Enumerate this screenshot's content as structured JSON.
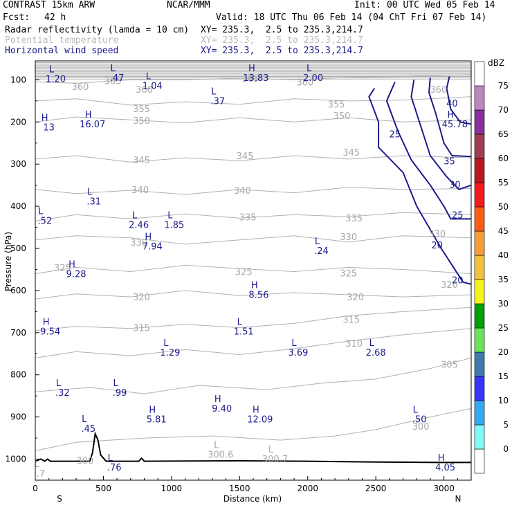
{
  "header": {
    "model": "CONTRAST 15km ARW",
    "org": "NCAR/MMM",
    "init": "Init: 00 UTC Wed 05 Feb 14",
    "fcst_label": "Fcst:",
    "fcst_value": "42 h",
    "valid": "Valid: 18 UTC Thu 06 Feb 14 (04 ChT Fri 07 Feb 14)"
  },
  "legend": [
    {
      "name": "Radar reflectivity (lamda = 10 cm)",
      "xy": "XY= 235.3,  2.5 to 235.3,214.7",
      "color": "#000000"
    },
    {
      "name": "Potential temperature",
      "xy": "XY= 235.3,  2.5 to 235.3,214.7",
      "color": "#bdbdbd"
    },
    {
      "name": "Horizontal wind speed",
      "xy": "XY= 235.3,  2.5 to 235.3,214.7",
      "color": "#1a1a8c"
    }
  ],
  "chart_data": {
    "type": "cross-section contour",
    "xlabel": "Distance (km)",
    "ylabel": "Pressure (hPa)",
    "xlim": [
      0,
      3200
    ],
    "ylim": [
      1050,
      55
    ],
    "x_ticks": [
      0,
      500,
      1000,
      1500,
      2000,
      2500,
      3000
    ],
    "y_ticks": [
      100,
      200,
      300,
      400,
      500,
      600,
      700,
      800,
      900,
      1000
    ],
    "x_end_labels": {
      "left": "S",
      "right": "N"
    },
    "theta_levels": [
      300,
      305,
      310,
      315,
      320,
      325,
      330,
      335,
      340,
      345,
      350,
      355,
      360,
      365
    ],
    "theta_contours": [
      {
        "label": "360",
        "points": [
          [
            0,
            105
          ],
          [
            300,
            108
          ],
          [
            700,
            100
          ],
          [
            1100,
            100
          ],
          [
            1500,
            96
          ],
          [
            1900,
            100
          ],
          [
            2300,
            94
          ],
          [
            2700,
            92
          ],
          [
            3200,
            88
          ]
        ]
      },
      {
        "label": "355",
        "points": [
          [
            0,
            150
          ],
          [
            300,
            145
          ],
          [
            700,
            160
          ],
          [
            1100,
            152
          ],
          [
            1500,
            158
          ],
          [
            1900,
            145
          ],
          [
            2300,
            150
          ],
          [
            2700,
            148
          ],
          [
            3200,
            140
          ]
        ]
      },
      {
        "label": "350",
        "points": [
          [
            0,
            200
          ],
          [
            300,
            188
          ],
          [
            700,
            195
          ],
          [
            1100,
            202
          ],
          [
            1500,
            190
          ],
          [
            1900,
            200
          ],
          [
            2300,
            190
          ],
          [
            2700,
            200
          ],
          [
            3200,
            195
          ]
        ]
      },
      {
        "label": "345",
        "points": [
          [
            0,
            288
          ],
          [
            300,
            280
          ],
          [
            700,
            295
          ],
          [
            1100,
            285
          ],
          [
            1500,
            292
          ],
          [
            1900,
            280
          ],
          [
            2300,
            288
          ],
          [
            2700,
            280
          ],
          [
            3200,
            285
          ]
        ]
      },
      {
        "label": "340",
        "points": [
          [
            0,
            360
          ],
          [
            300,
            370
          ],
          [
            700,
            362
          ],
          [
            1100,
            372
          ],
          [
            1500,
            360
          ],
          [
            1900,
            368
          ],
          [
            2300,
            355
          ],
          [
            2700,
            360
          ],
          [
            3200,
            358
          ]
        ]
      },
      {
        "label": "335",
        "points": [
          [
            0,
            435
          ],
          [
            300,
            420
          ],
          [
            700,
            430
          ],
          [
            1100,
            418
          ],
          [
            1500,
            428
          ],
          [
            1900,
            420
          ],
          [
            2300,
            425
          ],
          [
            2700,
            415
          ],
          [
            3200,
            420
          ]
        ]
      },
      {
        "label": "330",
        "points": [
          [
            0,
            480
          ],
          [
            300,
            470
          ],
          [
            700,
            475
          ],
          [
            1100,
            490
          ],
          [
            1500,
            480
          ],
          [
            1900,
            470
          ],
          [
            2300,
            485
          ],
          [
            2700,
            470
          ],
          [
            3200,
            475
          ]
        ]
      },
      {
        "label": "325",
        "points": [
          [
            0,
            560
          ],
          [
            300,
            545
          ],
          [
            700,
            555
          ],
          [
            1100,
            540
          ],
          [
            1500,
            548
          ],
          [
            1900,
            555
          ],
          [
            2300,
            545
          ],
          [
            2700,
            550
          ],
          [
            3200,
            560
          ]
        ]
      },
      {
        "label": "320",
        "points": [
          [
            0,
            620
          ],
          [
            300,
            608
          ],
          [
            700,
            615
          ],
          [
            1100,
            600
          ],
          [
            1500,
            612
          ],
          [
            1900,
            605
          ],
          [
            2300,
            610
          ],
          [
            2700,
            615
          ],
          [
            3200,
            610
          ]
        ]
      },
      {
        "label": "315",
        "points": [
          [
            0,
            695
          ],
          [
            300,
            685
          ],
          [
            700,
            690
          ],
          [
            1100,
            680
          ],
          [
            1500,
            688
          ],
          [
            1900,
            678
          ],
          [
            2300,
            660
          ],
          [
            2700,
            650
          ],
          [
            3200,
            640
          ]
        ]
      },
      {
        "label": "310",
        "points": [
          [
            0,
            760
          ],
          [
            300,
            745
          ],
          [
            700,
            755
          ],
          [
            1100,
            740
          ],
          [
            1500,
            752
          ],
          [
            1900,
            738
          ],
          [
            2300,
            720
          ],
          [
            2700,
            705
          ],
          [
            3200,
            690
          ]
        ]
      },
      {
        "label": "305",
        "points": [
          [
            0,
            840
          ],
          [
            400,
            830
          ],
          [
            800,
            845
          ],
          [
            1200,
            825
          ],
          [
            1700,
            835
          ],
          [
            2100,
            820
          ],
          [
            2500,
            810
          ],
          [
            2900,
            785
          ],
          [
            3200,
            760
          ]
        ]
      },
      {
        "label": "300",
        "points": [
          [
            0,
            980
          ],
          [
            300,
            960
          ],
          [
            800,
            950
          ],
          [
            1300,
            945
          ],
          [
            1800,
            955
          ],
          [
            2200,
            945
          ],
          [
            2500,
            930
          ],
          [
            2900,
            900
          ],
          [
            3200,
            880
          ]
        ]
      }
    ],
    "theta_labels": [
      {
        "text": "360",
        "x": 330,
        "y": 116
      },
      {
        "text": "365",
        "x": 570,
        "y": 102
      },
      {
        "text": "360",
        "x": 800,
        "y": 122
      },
      {
        "text": "365",
        "x": 1580,
        "y": 96
      },
      {
        "text": "360",
        "x": 1980,
        "y": 105
      },
      {
        "text": "360",
        "x": 2960,
        "y": 122
      },
      {
        "text": "355",
        "x": 780,
        "y": 168
      },
      {
        "text": "355",
        "x": 2210,
        "y": 158
      },
      {
        "text": "350",
        "x": 780,
        "y": 196
      },
      {
        "text": "350",
        "x": 2250,
        "y": 185
      },
      {
        "text": "345",
        "x": 780,
        "y": 290
      },
      {
        "text": "345",
        "x": 1540,
        "y": 280
      },
      {
        "text": "345",
        "x": 2320,
        "y": 272
      },
      {
        "text": "340",
        "x": 770,
        "y": 360
      },
      {
        "text": "340",
        "x": 1520,
        "y": 362
      },
      {
        "text": "335",
        "x": 1560,
        "y": 425
      },
      {
        "text": "335",
        "x": 2340,
        "y": 428
      },
      {
        "text": "330",
        "x": 760,
        "y": 485
      },
      {
        "text": "330",
        "x": 2300,
        "y": 472
      },
      {
        "text": "330",
        "x": 2950,
        "y": 465
      },
      {
        "text": "325",
        "x": 200,
        "y": 545
      },
      {
        "text": "325",
        "x": 1530,
        "y": 555
      },
      {
        "text": "325",
        "x": 2300,
        "y": 558
      },
      {
        "text": "320",
        "x": 780,
        "y": 615
      },
      {
        "text": "320",
        "x": 2350,
        "y": 615
      },
      {
        "text": "320",
        "x": 3040,
        "y": 585
      },
      {
        "text": "315",
        "x": 780,
        "y": 688
      },
      {
        "text": "315",
        "x": 2320,
        "y": 668
      },
      {
        "text": "310",
        "x": 2340,
        "y": 725
      },
      {
        "text": "305",
        "x": 3040,
        "y": 775
      },
      {
        "text": "300",
        "x": 2830,
        "y": 922
      },
      {
        "text": "300",
        "x": 365,
        "y": 1003
      }
    ],
    "wind_contours": [
      {
        "label": "20",
        "points": [
          [
            2490,
            120
          ],
          [
            2450,
            140
          ],
          [
            2520,
            200
          ],
          [
            2520,
            260
          ],
          [
            2700,
            320
          ],
          [
            2800,
            400
          ],
          [
            2980,
            500
          ],
          [
            3140,
            580
          ],
          [
            3200,
            585
          ]
        ]
      },
      {
        "label": "25",
        "points": [
          [
            2640,
            105
          ],
          [
            2580,
            150
          ],
          [
            2660,
            220
          ],
          [
            2760,
            290
          ],
          [
            2900,
            350
          ],
          [
            3000,
            400
          ],
          [
            3050,
            430
          ],
          [
            3200,
            430
          ]
        ]
      },
      {
        "label": "30",
        "points": [
          [
            2780,
            100
          ],
          [
            2760,
            140
          ],
          [
            2810,
            190
          ],
          [
            2900,
            280
          ],
          [
            3020,
            330
          ],
          [
            3110,
            360
          ],
          [
            3200,
            350
          ]
        ]
      },
      {
        "label": "35",
        "points": [
          [
            2900,
            95
          ],
          [
            2890,
            130
          ],
          [
            2940,
            180
          ],
          [
            3000,
            250
          ],
          [
            3060,
            280
          ],
          [
            3200,
            282
          ]
        ]
      },
      {
        "label": "40",
        "points": [
          [
            3040,
            92
          ],
          [
            3020,
            120
          ],
          [
            3050,
            170
          ],
          [
            3120,
            200
          ],
          [
            3200,
            205
          ]
        ]
      }
    ],
    "wind_labels": [
      {
        "text": "25",
        "x": 2640,
        "y": 228
      },
      {
        "text": "40",
        "x": 3060,
        "y": 155
      },
      {
        "text": "35",
        "x": 3040,
        "y": 292
      },
      {
        "text": "30",
        "x": 3080,
        "y": 348
      },
      {
        "text": "25",
        "x": 3100,
        "y": 420
      },
      {
        "text": "20",
        "x": 2950,
        "y": 492
      },
      {
        "text": "20",
        "x": 3100,
        "y": 575
      }
    ],
    "wind_extrema": [
      {
        "kind": "L",
        "value": "1.20",
        "x": 150,
        "y": 85
      },
      {
        "kind": "L",
        "value": ".47",
        "x": 600,
        "y": 83
      },
      {
        "kind": "L",
        "value": "1.04",
        "x": 860,
        "y": 102
      },
      {
        "kind": "H",
        "value": "13.83",
        "x": 1620,
        "y": 83
      },
      {
        "kind": "L",
        "value": "2.00",
        "x": 2040,
        "y": 83
      },
      {
        "kind": "L",
        "value": ".37",
        "x": 1340,
        "y": 138
      },
      {
        "kind": "H",
        "value": "13",
        "x": 100,
        "y": 200
      },
      {
        "kind": "H",
        "value": "16.07",
        "x": 420,
        "y": 193
      },
      {
        "kind": "H",
        "value": "45.78",
        "x": 3080,
        "y": 193
      },
      {
        "kind": "L",
        "value": ".31",
        "x": 430,
        "y": 376
      },
      {
        "kind": "L",
        "value": ".52",
        "x": 70,
        "y": 422
      },
      {
        "kind": "L",
        "value": "2.46",
        "x": 760,
        "y": 432
      },
      {
        "kind": "L",
        "value": "1.85",
        "x": 1020,
        "y": 432
      },
      {
        "kind": "H",
        "value": "7.94",
        "x": 860,
        "y": 483
      },
      {
        "kind": "L",
        "value": ".24",
        "x": 2100,
        "y": 493
      },
      {
        "kind": "H",
        "value": "9.28",
        "x": 300,
        "y": 548
      },
      {
        "kind": "H",
        "value": "8.56",
        "x": 1640,
        "y": 598
      },
      {
        "kind": "H",
        "value": "9.54",
        "x": 110,
        "y": 685
      },
      {
        "kind": "L",
        "value": "1.51",
        "x": 1530,
        "y": 685
      },
      {
        "kind": "L",
        "value": "1.29",
        "x": 990,
        "y": 735
      },
      {
        "kind": "L",
        "value": "3.69",
        "x": 1930,
        "y": 735
      },
      {
        "kind": "L",
        "value": "2.68",
        "x": 2500,
        "y": 735
      },
      {
        "kind": "L",
        "value": ".32",
        "x": 200,
        "y": 830
      },
      {
        "kind": "L",
        "value": ".99",
        "x": 620,
        "y": 830
      },
      {
        "kind": "H",
        "value": "9.40",
        "x": 1370,
        "y": 868
      },
      {
        "kind": "H",
        "value": "5.81",
        "x": 890,
        "y": 893
      },
      {
        "kind": "H",
        "value": "12.09",
        "x": 1650,
        "y": 893
      },
      {
        "kind": "L",
        "value": ".50",
        "x": 2820,
        "y": 893
      },
      {
        "kind": "L",
        "value": ".45",
        "x": 390,
        "y": 915
      },
      {
        "kind": "L",
        "value": ".76",
        "x": 580,
        "y": 1007
      },
      {
        "kind": "H",
        "value": "4.05",
        "x": 3010,
        "y": 1007
      }
    ],
    "theta_extrema": [
      {
        "kind": "L",
        "value": "300.6",
        "x": 1360,
        "y": 977
      },
      {
        "kind": "L",
        "value": "300.7",
        "x": 1760,
        "y": 988
      },
      {
        "kind": "L",
        "value": ".7",
        "x": 40,
        "y": 1022
      }
    ],
    "terrain": [
      [
        0,
        1005
      ],
      [
        40,
        1000
      ],
      [
        70,
        1005
      ],
      [
        90,
        1000
      ],
      [
        110,
        1005
      ],
      [
        400,
        1005
      ],
      [
        420,
        985
      ],
      [
        440,
        940
      ],
      [
        460,
        955
      ],
      [
        480,
        990
      ],
      [
        520,
        1005
      ],
      [
        760,
        1005
      ],
      [
        780,
        998
      ],
      [
        800,
        1005
      ],
      [
        1500,
        1004
      ],
      [
        2000,
        1005
      ],
      [
        2500,
        1007
      ],
      [
        3000,
        1008
      ],
      [
        3200,
        1008
      ]
    ],
    "colorbar": {
      "title": "dBZ",
      "levels": [
        0,
        5,
        10,
        15,
        20,
        25,
        30,
        35,
        40,
        45,
        50,
        55,
        60,
        65,
        70,
        75
      ],
      "colors": [
        "#ffffff",
        "#7dfcfa",
        "#33aaf0",
        "#3535ff",
        "#3c7ab0",
        "#6ae35a",
        "#00a000",
        "#f7f21a",
        "#f5c13c",
        "#f79e3b",
        "#ff5b12",
        "#f21a1a",
        "#b8181e",
        "#9e3d55",
        "#8b2f9c",
        "#bb87bf",
        "#ffffff"
      ]
    }
  }
}
